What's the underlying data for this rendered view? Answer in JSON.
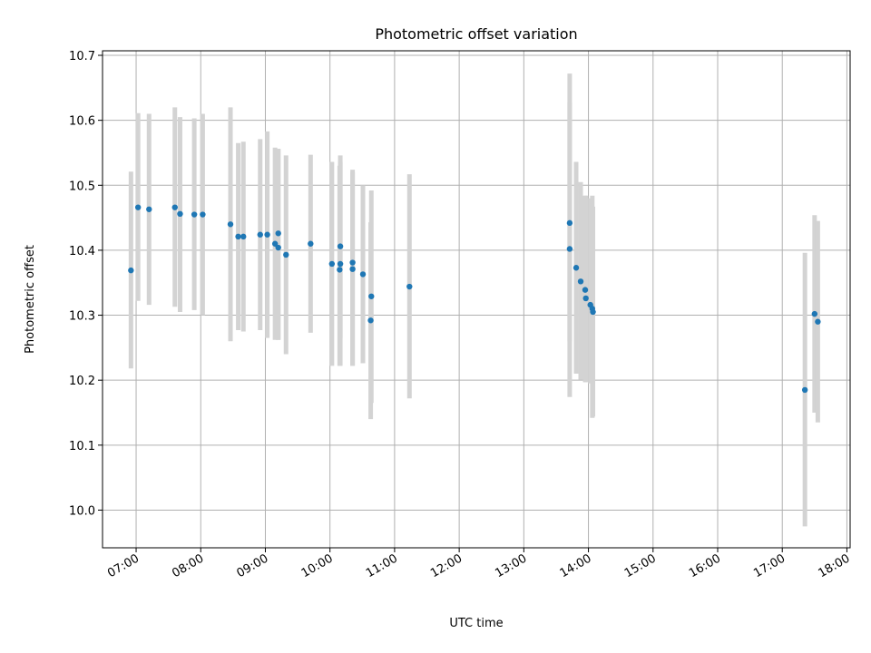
{
  "chart_data": {
    "type": "scatter",
    "title": "Photometric offset variation",
    "xlabel": "UTC time",
    "ylabel": "Photometric offset",
    "xlim_hours": [
      6.48,
      18.05
    ],
    "ylim": [
      9.942,
      10.707
    ],
    "grid": true,
    "legend": "none",
    "colors": {
      "point": "#1f77b4",
      "errorbar": "#d3d3d3",
      "grid": "#b0b0b0"
    },
    "x_ticks": [
      {
        "hour": 7,
        "label": "07:00"
      },
      {
        "hour": 8,
        "label": "08:00"
      },
      {
        "hour": 9,
        "label": "09:00"
      },
      {
        "hour": 10,
        "label": "10:00"
      },
      {
        "hour": 11,
        "label": "11:00"
      },
      {
        "hour": 12,
        "label": "12:00"
      },
      {
        "hour": 13,
        "label": "13:00"
      },
      {
        "hour": 14,
        "label": "14:00"
      },
      {
        "hour": 15,
        "label": "15:00"
      },
      {
        "hour": 16,
        "label": "16:00"
      },
      {
        "hour": 17,
        "label": "17:00"
      },
      {
        "hour": 18,
        "label": "18:00"
      }
    ],
    "y_ticks": [
      {
        "value": 10.0,
        "label": "10.0"
      },
      {
        "value": 10.1,
        "label": "10.1"
      },
      {
        "value": 10.2,
        "label": "10.2"
      },
      {
        "value": 10.3,
        "label": "10.3"
      },
      {
        "value": 10.4,
        "label": "10.4"
      },
      {
        "value": 10.5,
        "label": "10.5"
      },
      {
        "value": 10.6,
        "label": "10.6"
      },
      {
        "value": 10.7,
        "label": "10.7"
      }
    ],
    "points": [
      {
        "x": 6.92,
        "y": 10.369,
        "low": 10.218,
        "high": 10.521
      },
      {
        "x": 7.03,
        "y": 10.466,
        "low": 10.322,
        "high": 10.611
      },
      {
        "x": 7.2,
        "y": 10.463,
        "low": 10.316,
        "high": 10.61
      },
      {
        "x": 7.6,
        "y": 10.466,
        "low": 10.313,
        "high": 10.62
      },
      {
        "x": 7.68,
        "y": 10.456,
        "low": 10.305,
        "high": 10.605
      },
      {
        "x": 7.9,
        "y": 10.455,
        "low": 10.308,
        "high": 10.603
      },
      {
        "x": 8.03,
        "y": 10.455,
        "low": 10.3,
        "high": 10.61
      },
      {
        "x": 8.46,
        "y": 10.44,
        "low": 10.26,
        "high": 10.62
      },
      {
        "x": 8.58,
        "y": 10.421,
        "low": 10.277,
        "high": 10.565
      },
      {
        "x": 8.66,
        "y": 10.421,
        "low": 10.275,
        "high": 10.567
      },
      {
        "x": 8.92,
        "y": 10.424,
        "low": 10.277,
        "high": 10.571
      },
      {
        "x": 9.03,
        "y": 10.424,
        "low": 10.265,
        "high": 10.583
      },
      {
        "x": 9.15,
        "y": 10.41,
        "low": 10.262,
        "high": 10.558
      },
      {
        "x": 9.2,
        "y": 10.426,
        "low": 10.262,
        "high": 10.556
      },
      {
        "x": 9.2,
        "y": 10.404,
        "low": 10.262,
        "high": 10.556
      },
      {
        "x": 9.32,
        "y": 10.393,
        "low": 10.24,
        "high": 10.546
      },
      {
        "x": 9.7,
        "y": 10.41,
        "low": 10.273,
        "high": 10.547
      },
      {
        "x": 10.03,
        "y": 10.379,
        "low": 10.222,
        "high": 10.536
      },
      {
        "x": 10.15,
        "y": 10.37,
        "low": 10.222,
        "high": 10.53
      },
      {
        "x": 10.16,
        "y": 10.406,
        "low": 10.265,
        "high": 10.546
      },
      {
        "x": 10.16,
        "y": 10.379,
        "low": 10.222,
        "high": 10.536
      },
      {
        "x": 10.35,
        "y": 10.381,
        "low": 10.222,
        "high": 10.524
      },
      {
        "x": 10.35,
        "y": 10.371,
        "low": 10.222,
        "high": 10.52
      },
      {
        "x": 10.51,
        "y": 10.363,
        "low": 10.226,
        "high": 10.5
      },
      {
        "x": 10.63,
        "y": 10.292,
        "low": 10.14,
        "high": 10.443
      },
      {
        "x": 10.64,
        "y": 10.329,
        "low": 10.165,
        "high": 10.492
      },
      {
        "x": 11.23,
        "y": 10.344,
        "low": 10.172,
        "high": 10.517
      },
      {
        "x": 13.71,
        "y": 10.442,
        "low": 10.26,
        "high": 10.672
      },
      {
        "x": 13.71,
        "y": 10.402,
        "low": 10.174,
        "high": 10.627
      },
      {
        "x": 13.81,
        "y": 10.373,
        "low": 10.21,
        "high": 10.536
      },
      {
        "x": 13.88,
        "y": 10.352,
        "low": 10.201,
        "high": 10.505
      },
      {
        "x": 13.95,
        "y": 10.339,
        "low": 10.197,
        "high": 10.484
      },
      {
        "x": 13.96,
        "y": 10.326,
        "low": 10.197,
        "high": 10.484
      },
      {
        "x": 14.03,
        "y": 10.316,
        "low": 10.195,
        "high": 10.48
      },
      {
        "x": 14.06,
        "y": 10.31,
        "low": 10.142,
        "high": 10.484
      },
      {
        "x": 14.07,
        "y": 10.305,
        "low": 10.144,
        "high": 10.467
      },
      {
        "x": 17.35,
        "y": 10.185,
        "low": 9.975,
        "high": 10.396
      },
      {
        "x": 17.5,
        "y": 10.302,
        "low": 10.15,
        "high": 10.454
      },
      {
        "x": 17.55,
        "y": 10.29,
        "low": 10.135,
        "high": 10.445
      }
    ]
  }
}
